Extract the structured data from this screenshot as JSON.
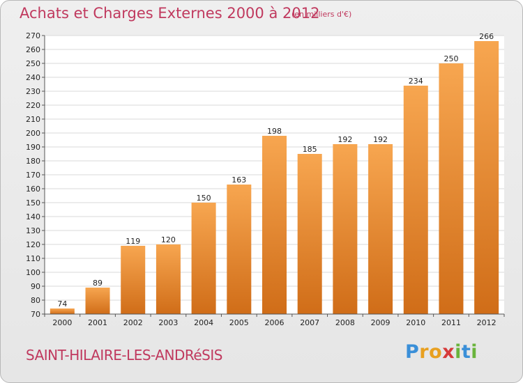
{
  "header": {
    "title": "Achats et Charges Externes 2000 à 2012",
    "unit": "(en milliers d'€)"
  },
  "footer": {
    "commune": "SAINT-HILAIRE-LES-ANDRéSIS",
    "logo_text": "Proxiti",
    "logo_letters": [
      {
        "ch": "P",
        "color": "#3a8fd8"
      },
      {
        "ch": "r",
        "color": "#e8a020"
      },
      {
        "ch": "o",
        "color": "#e8a020"
      },
      {
        "ch": "x",
        "color": "#d63a3a"
      },
      {
        "ch": "i",
        "color": "#6ab43c"
      },
      {
        "ch": "t",
        "color": "#3a8fd8"
      },
      {
        "ch": "i",
        "color": "#6ab43c"
      }
    ]
  },
  "chart_data": {
    "type": "bar",
    "categories": [
      "2000",
      "2001",
      "2002",
      "2003",
      "2004",
      "2005",
      "2006",
      "2007",
      "2008",
      "2009",
      "2010",
      "2011",
      "2012"
    ],
    "values": [
      74,
      89,
      119,
      120,
      150,
      163,
      198,
      185,
      192,
      192,
      234,
      250,
      266
    ],
    "title": "Achats et Charges Externes 2000 à 2012",
    "xlabel": "",
    "ylabel": "",
    "ylim": [
      70,
      270
    ],
    "yticks": [
      70,
      80,
      90,
      100,
      110,
      120,
      130,
      140,
      150,
      160,
      170,
      180,
      190,
      200,
      210,
      220,
      230,
      240,
      250,
      260,
      270
    ],
    "grid": true,
    "bar_color": "#f0903a"
  }
}
